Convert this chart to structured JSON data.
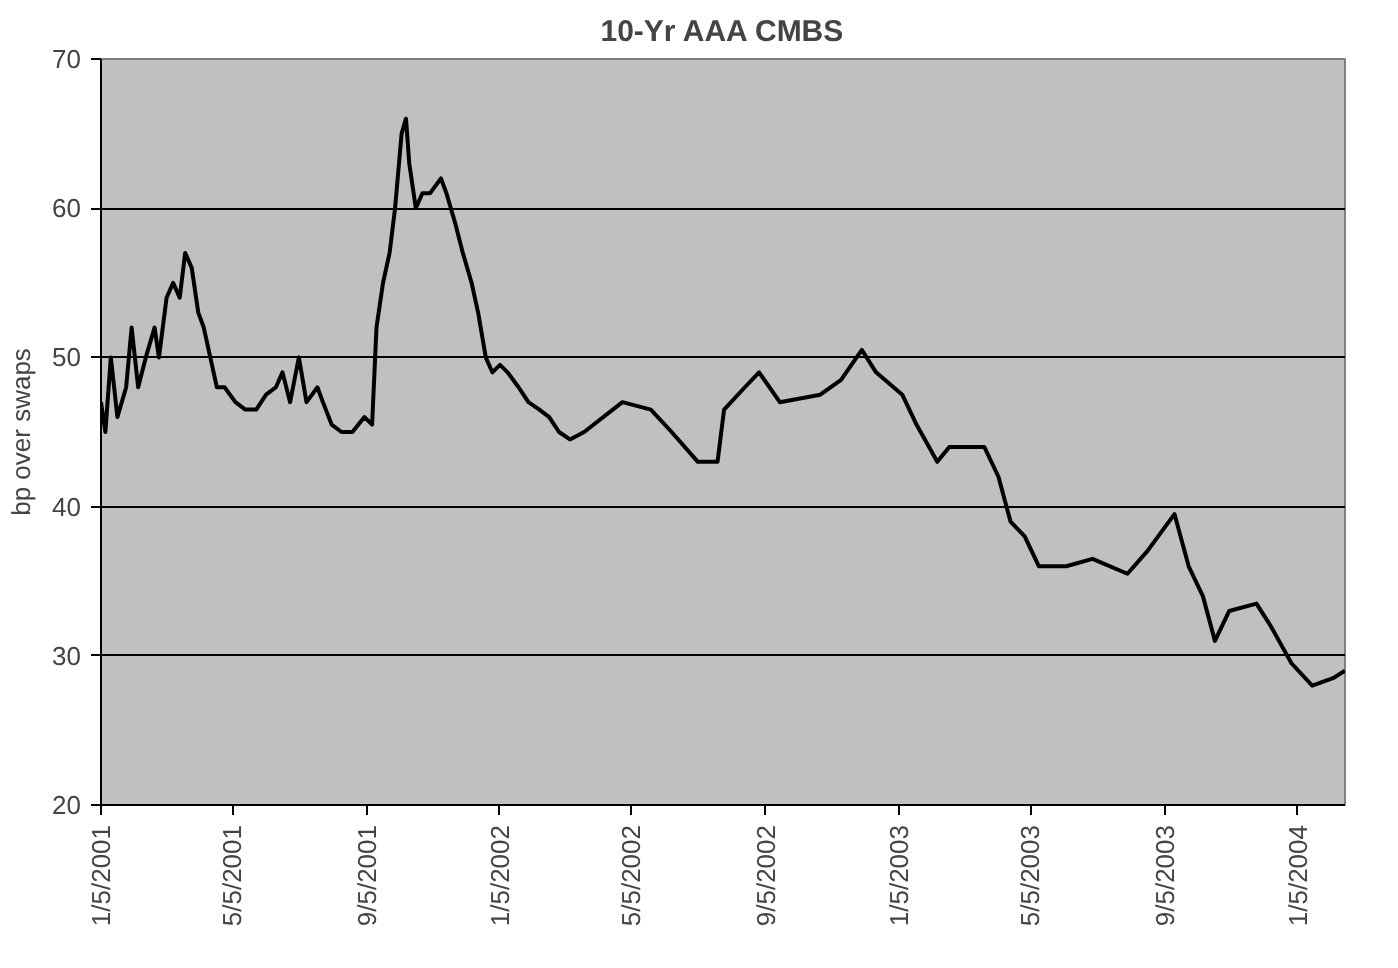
{
  "chart_data": {
    "type": "line",
    "title": "10-Yr AAA CMBS",
    "ylabel": "bp over swaps",
    "x": [
      "2001-01-05",
      "2001-01-09",
      "2001-01-14",
      "2001-01-20",
      "2001-01-28",
      "2001-02-02",
      "2001-02-08",
      "2001-02-15",
      "2001-02-23",
      "2001-02-27",
      "2001-03-06",
      "2001-03-12",
      "2001-03-18",
      "2001-03-23",
      "2001-03-29",
      "2001-04-04",
      "2001-04-09",
      "2001-04-15",
      "2001-04-21",
      "2001-04-28",
      "2001-05-08",
      "2001-05-17",
      "2001-05-27",
      "2001-06-05",
      "2001-06-14",
      "2001-06-20",
      "2001-06-27",
      "2001-07-05",
      "2001-07-12",
      "2001-07-22",
      "2001-07-27",
      "2001-08-04",
      "2001-08-13",
      "2001-08-23",
      "2001-09-03",
      "2001-09-10",
      "2001-09-14",
      "2001-09-20",
      "2001-09-26",
      "2001-10-01",
      "2001-10-07",
      "2001-10-11",
      "2001-10-14",
      "2001-10-20",
      "2001-10-26",
      "2001-11-02",
      "2001-11-12",
      "2001-11-17",
      "2001-11-25",
      "2001-12-02",
      "2001-12-10",
      "2001-12-16",
      "2001-12-23",
      "2001-12-29",
      "2002-01-05",
      "2002-01-12",
      "2002-01-22",
      "2002-01-31",
      "2002-02-10",
      "2002-02-19",
      "2002-02-28",
      "2002-03-10",
      "2002-03-23",
      "2002-04-27",
      "2002-05-23",
      "2002-06-11",
      "2002-07-05",
      "2002-07-23",
      "2002-07-29",
      "2002-08-17",
      "2002-08-30",
      "2002-09-18",
      "2002-10-25",
      "2002-11-13",
      "2002-12-02",
      "2002-12-15",
      "2003-01-08",
      "2003-01-21",
      "2003-02-09",
      "2003-02-20",
      "2003-03-24",
      "2003-04-06",
      "2003-04-17",
      "2003-04-30",
      "2003-05-13",
      "2003-06-07",
      "2003-07-01",
      "2003-08-02",
      "2003-08-20",
      "2003-09-14",
      "2003-09-27",
      "2003-10-10",
      "2003-10-21",
      "2003-11-03",
      "2003-11-28",
      "2003-12-11",
      "2003-12-30",
      "2004-01-18",
      "2004-02-06",
      "2004-02-17"
    ],
    "series": [
      {
        "color": "#000000",
        "values": [
          47,
          45,
          50,
          46,
          48,
          52,
          48,
          50,
          52,
          50,
          54,
          55,
          54,
          57,
          56,
          53,
          52,
          50,
          48,
          48,
          47,
          46.5,
          46.5,
          47.5,
          48,
          49,
          47,
          50,
          47,
          48,
          47,
          45.5,
          45,
          45,
          46,
          45.5,
          52,
          55,
          57,
          60,
          65,
          66,
          63,
          60,
          61,
          61,
          62,
          61,
          59,
          57,
          55,
          53,
          50,
          49,
          49.5,
          49,
          48,
          47,
          46.5,
          46,
          45,
          44.5,
          45,
          47,
          46.5,
          45,
          43,
          43,
          46.5,
          48,
          49,
          47,
          47.5,
          48.5,
          50.5,
          49,
          47.5,
          45.5,
          43,
          44,
          44,
          42,
          39,
          38,
          36,
          36,
          36.5,
          35.5,
          37,
          39.5,
          36,
          34,
          31,
          33,
          33.5,
          32,
          29.5,
          28,
          28.5,
          29
        ]
      }
    ],
    "xlim": [
      "2001-01-05",
      "2004-02-17"
    ],
    "xticks": [
      {
        "value": "2001-01-05",
        "label": "1/5/2001"
      },
      {
        "value": "2001-05-05",
        "label": "5/5/2001"
      },
      {
        "value": "2001-09-05",
        "label": "9/5/2001"
      },
      {
        "value": "2002-01-05",
        "label": "1/5/2002"
      },
      {
        "value": "2002-05-05",
        "label": "5/5/2002"
      },
      {
        "value": "2002-09-05",
        "label": "9/5/2002"
      },
      {
        "value": "2003-01-05",
        "label": "1/5/2003"
      },
      {
        "value": "2003-05-05",
        "label": "5/5/2003"
      },
      {
        "value": "2003-09-05",
        "label": "9/5/2003"
      },
      {
        "value": "2004-01-05",
        "label": "1/5/2004"
      }
    ],
    "ylim": [
      20,
      70
    ],
    "yticks": [
      20,
      30,
      40,
      50,
      60,
      70
    ],
    "grid": "y",
    "marker": "none",
    "line_style": "solid"
  }
}
